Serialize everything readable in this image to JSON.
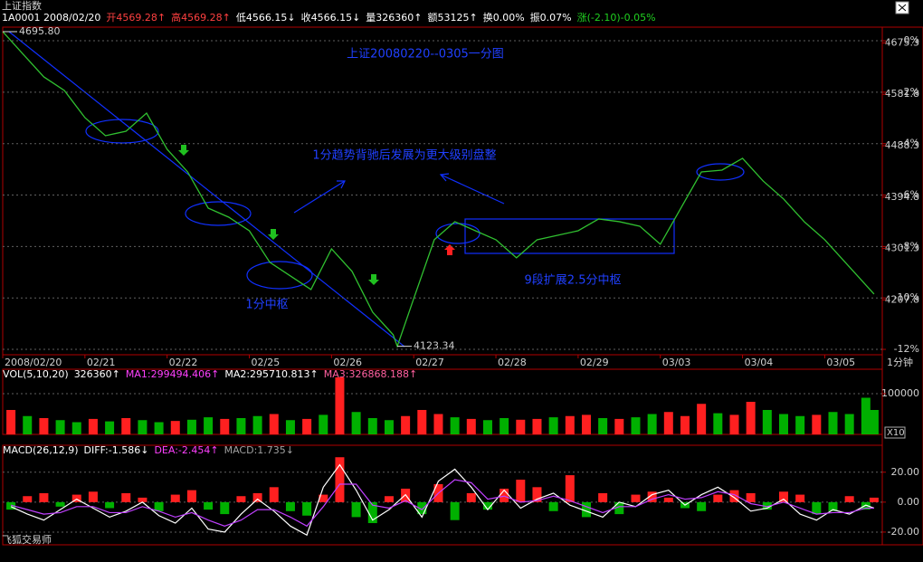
{
  "header": {
    "title": "上证指数",
    "items": [
      {
        "text": "1A0001 2008/02/20",
        "color": "#ffffff"
      },
      {
        "text": "开4569.28↑",
        "color": "#ff4040"
      },
      {
        "text": "高4569.28↑",
        "color": "#ff4040"
      },
      {
        "text": "低4566.15↓",
        "color": "#ffffff"
      },
      {
        "text": "收4566.15↓",
        "color": "#ffffff"
      },
      {
        "text": "量326360↑",
        "color": "#ffffff"
      },
      {
        "text": "额53125↑",
        "color": "#ffffff"
      },
      {
        "text": "换0.00%",
        "color": "#ffffff"
      },
      {
        "text": "振0.07%",
        "color": "#ffffff"
      },
      {
        "text": "涨(-2.10)-0.05%",
        "color": "#20d020"
      }
    ]
  },
  "chart_data": [
    {
      "type": "line",
      "title": "上证20080220--0305一分图",
      "annotations": [
        "1分趋势背驰后发展为更大级别盘整",
        "9段扩展2.5分中枢",
        "1分中枢"
      ],
      "extremes": [
        {
          "value": 4695.8,
          "label": "4695.80"
        },
        {
          "value": 4123.34,
          "label": "4123.34"
        }
      ],
      "x": [
        0,
        0.25,
        0.5,
        0.75,
        1,
        1.25,
        1.5,
        1.75,
        2,
        2.25,
        2.5,
        2.75,
        3,
        3.25,
        3.5,
        3.75,
        4,
        4.25,
        4.5,
        4.75,
        4.8,
        5,
        5.25,
        5.5,
        5.75,
        6,
        6.25,
        6.5,
        6.75,
        7,
        7.25,
        7.5,
        7.75,
        8,
        8.25,
        8.5,
        8.75,
        9,
        9.25,
        9.5,
        9.75,
        10,
        10.25,
        10.5,
        10.6
      ],
      "series": [
        {
          "color": "#30c030",
          "values": [
            4695.8,
            4654.6,
            4613.5,
            4588.8,
            4539.4,
            4506.5,
            4514.7,
            4547.6,
            4481.8,
            4440.6,
            4374.8,
            4358.3,
            4333.6,
            4276.0,
            4251.4,
            4226.7,
            4300.7,
            4259.6,
            4185.5,
            4144.4,
            4123.34,
            4210.2,
            4317.2,
            4350.1,
            4333.6,
            4317.2,
            4284.3,
            4317.2,
            4325.4,
            4333.6,
            4355.0,
            4350.1,
            4341.9,
            4309.0,
            4374.8,
            4440.6,
            4443.9,
            4465.3,
            4424.2,
            4391.3,
            4350.1,
            4317.2,
            4276.0,
            4234.9,
            4218.4
          ]
        }
      ],
      "xlim": [
        0,
        10.7
      ],
      "xticks": [
        {
          "value": 0,
          "label": "2008/02/20"
        },
        {
          "value": 1,
          "label": "02/21"
        },
        {
          "value": 2,
          "label": "02/22"
        },
        {
          "value": 3,
          "label": "02/25"
        },
        {
          "value": 4,
          "label": "02/26"
        },
        {
          "value": 5,
          "label": "02/27"
        },
        {
          "value": 6,
          "label": "02/28"
        },
        {
          "value": 7,
          "label": "02/29"
        },
        {
          "value": 8,
          "label": "03/03"
        },
        {
          "value": 9,
          "label": "03/04"
        },
        {
          "value": 10,
          "label": "03/05"
        }
      ],
      "ylim": [
        4108,
        4704
      ],
      "yticks": [
        4675.3,
        4581.8,
        4488.3,
        4394.8,
        4301.3,
        4207.8
      ],
      "y2lim": [
        -12.21,
        0.53
      ],
      "y2ticks": [
        {
          "value": 0,
          "label": "0%"
        },
        {
          "value": -2,
          "label": "-2%"
        },
        {
          "value": -4,
          "label": "-4%"
        },
        {
          "value": -6,
          "label": "-6%"
        },
        {
          "value": -8,
          "label": "-8%"
        },
        {
          "value": -10,
          "label": "-10%"
        },
        {
          "value": -12,
          "label": "-12%"
        }
      ],
      "grid": true
    },
    {
      "type": "bar",
      "legend_items": [
        {
          "text": "VOL(5,10,20)",
          "color": "#ffffff"
        },
        {
          "text": "326360↑",
          "color": "#ffffff"
        },
        {
          "text": "MA1:299494.406↑",
          "color": "#ff40ff"
        },
        {
          "text": "MA2:295710.813↑",
          "color": "#ffffff"
        },
        {
          "text": "MA3:326868.188↑",
          "color": "#ff60a0"
        }
      ],
      "x": [
        0.1,
        0.3,
        0.5,
        0.7,
        0.9,
        1.1,
        1.3,
        1.5,
        1.7,
        1.9,
        2.1,
        2.3,
        2.5,
        2.7,
        2.9,
        3.1,
        3.3,
        3.5,
        3.7,
        3.9,
        4.1,
        4.3,
        4.5,
        4.7,
        4.9,
        5.1,
        5.3,
        5.5,
        5.7,
        5.9,
        6.1,
        6.3,
        6.5,
        6.7,
        6.9,
        7.1,
        7.3,
        7.5,
        7.7,
        7.9,
        8.1,
        8.3,
        8.5,
        8.7,
        8.9,
        9.1,
        9.3,
        9.5,
        9.7,
        9.9,
        10.1,
        10.3,
        10.5,
        10.6
      ],
      "values": [
        60000,
        45000,
        40000,
        35000,
        30000,
        38000,
        32000,
        40000,
        35000,
        30000,
        33000,
        36000,
        42000,
        38000,
        40000,
        45000,
        50000,
        35000,
        38000,
        48000,
        140000,
        55000,
        40000,
        35000,
        45000,
        60000,
        50000,
        42000,
        38000,
        35000,
        40000,
        36000,
        38000,
        42000,
        45000,
        48000,
        40000,
        38000,
        42000,
        50000,
        55000,
        45000,
        75000,
        52000,
        48000,
        80000,
        60000,
        50000,
        45000,
        48000,
        55000,
        50000,
        90000,
        60000
      ],
      "colors": [
        "#ff2020",
        "#00b000",
        "#ff2020",
        "#00b000",
        "#00b000",
        "#ff2020",
        "#00b000",
        "#ff2020",
        "#00b000",
        "#00b000",
        "#ff2020",
        "#00b000",
        "#00b000",
        "#ff2020",
        "#00b000",
        "#00b000",
        "#ff2020",
        "#00b000",
        "#ff2020",
        "#00b000",
        "#ff2020",
        "#00b000",
        "#00b000",
        "#00b000",
        "#ff2020",
        "#ff2020",
        "#ff2020",
        "#00b000",
        "#ff2020",
        "#00b000",
        "#00b000",
        "#ff2020",
        "#ff2020",
        "#00b000",
        "#ff2020",
        "#ff2020",
        "#00b000",
        "#ff2020",
        "#00b000",
        "#00b000",
        "#ff2020",
        "#ff2020",
        "#ff2020",
        "#00b000",
        "#ff2020",
        "#ff2020",
        "#00b000",
        "#00b000",
        "#00b000",
        "#ff2020",
        "#00b000",
        "#00b000",
        "#00b000",
        "#00b000"
      ],
      "xlim": [
        0,
        10.7
      ],
      "ylim": [
        0,
        160000
      ],
      "yticks": [
        100000
      ],
      "grid": true
    },
    {
      "type": "macd",
      "legend_items": [
        {
          "text": "MACD(26,12,9)",
          "color": "#ffffff"
        },
        {
          "text": "DIFF:-1.586↓",
          "color": "#ffffff"
        },
        {
          "text": "DEA:-2.454↑",
          "color": "#ff40ff"
        },
        {
          "text": "MACD:1.735↓",
          "color": "#a0a0a0"
        }
      ],
      "x": [
        0.1,
        0.3,
        0.5,
        0.7,
        0.9,
        1.1,
        1.3,
        1.5,
        1.7,
        1.9,
        2.1,
        2.3,
        2.5,
        2.7,
        2.9,
        3.1,
        3.3,
        3.5,
        3.7,
        3.9,
        4.1,
        4.3,
        4.5,
        4.7,
        4.9,
        5.1,
        5.3,
        5.5,
        5.7,
        5.9,
        6.1,
        6.3,
        6.5,
        6.7,
        6.9,
        7.1,
        7.3,
        7.5,
        7.7,
        7.9,
        8.1,
        8.3,
        8.5,
        8.7,
        8.9,
        9.1,
        9.3,
        9.5,
        9.7,
        9.9,
        10.1,
        10.3,
        10.5,
        10.6
      ],
      "histogram": {
        "up_color": "#ff2020",
        "down_color": "#00b000",
        "values": [
          -5,
          4,
          6,
          -3,
          5,
          7,
          -4,
          6,
          3,
          -6,
          5,
          8,
          -5,
          -8,
          4,
          6,
          10,
          -6,
          -9,
          5,
          30,
          -10,
          -14,
          4,
          9,
          -8,
          12,
          -12,
          6,
          -5,
          9,
          15,
          10,
          -6,
          18,
          -10,
          6,
          -8,
          5,
          7,
          3,
          -4,
          -6,
          5,
          8,
          6,
          -5,
          7,
          5,
          -8,
          -6,
          4,
          -5,
          3
        ]
      },
      "series": [
        {
          "color": "#ffffff",
          "values": [
            -3,
            -8,
            -12,
            -5,
            2,
            -4,
            -10,
            -6,
            0,
            -9,
            -14,
            -4,
            -18,
            -20,
            -8,
            2,
            -6,
            -16,
            -22,
            10,
            25,
            8,
            -12,
            -5,
            5,
            -10,
            14,
            22,
            10,
            -5,
            8,
            -4,
            2,
            6,
            -2,
            -6,
            -10,
            0,
            -3,
            5,
            8,
            -2,
            5,
            10,
            3,
            -6,
            -4,
            2,
            -8,
            -12,
            -5,
            -8,
            -2,
            -4
          ]
        },
        {
          "color": "#c040ff",
          "values": [
            -2,
            -5,
            -8,
            -7,
            -3,
            -3,
            -7,
            -7,
            -3,
            -6,
            -10,
            -7,
            -12,
            -16,
            -12,
            -5,
            -5,
            -10,
            -16,
            -3,
            12,
            12,
            -2,
            -4,
            1,
            -5,
            6,
            15,
            13,
            2,
            4,
            0,
            1,
            4,
            1,
            -3,
            -7,
            -3,
            -3,
            2,
            5,
            2,
            3,
            7,
            5,
            -1,
            -3,
            0,
            -4,
            -8,
            -7,
            -7,
            -4,
            -4
          ]
        }
      ],
      "xlim": [
        0,
        10.7
      ],
      "ylim": [
        -28.5,
        38
      ],
      "yticks": [
        {
          "value": 20,
          "label": "20.00"
        },
        {
          "value": 0,
          "label": "0.00"
        },
        {
          "value": -20,
          "label": "-20.00"
        }
      ],
      "grid": true
    }
  ],
  "footer": {
    "period": "1分钟",
    "scale": "X10",
    "software": "飞狐交易师"
  }
}
